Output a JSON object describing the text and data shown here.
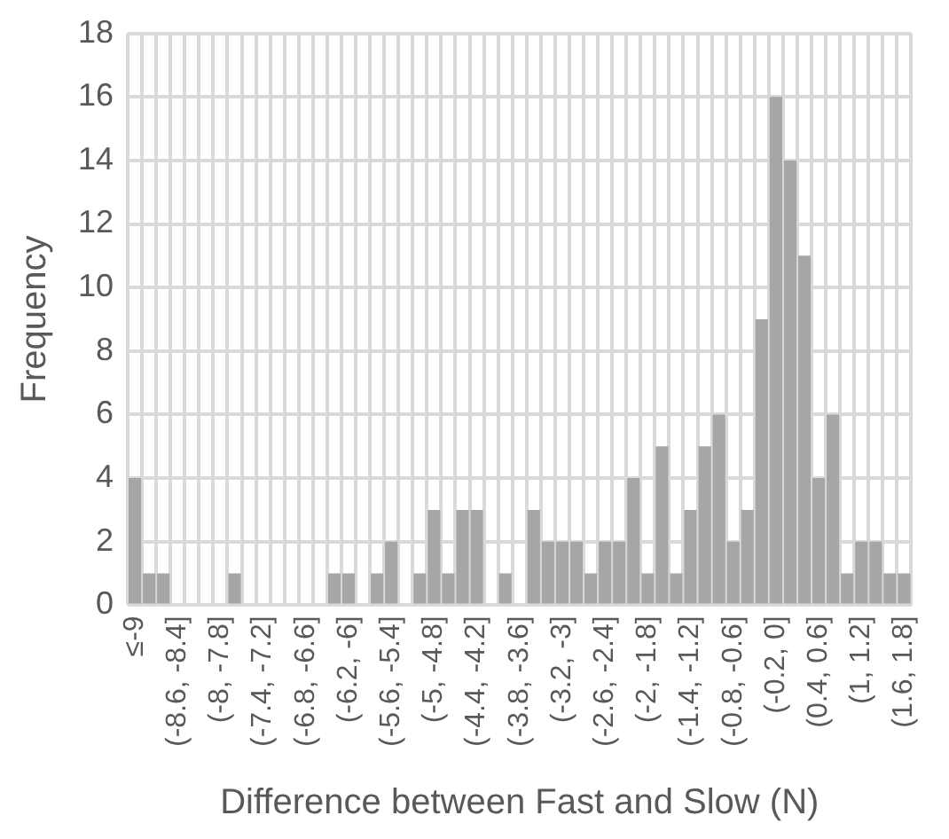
{
  "chart_data": {
    "type": "bar",
    "xlabel": "Difference between Fast and Slow (N)",
    "ylabel": "Frequency",
    "categories": [
      "≤-9",
      null,
      null,
      "(-8.6, -8.4]",
      null,
      null,
      "(-8, -7.8]",
      null,
      null,
      "(-7.4, -7.2]",
      null,
      null,
      "(-6.8, -6.6]",
      null,
      null,
      "(-6.2, -6]",
      null,
      null,
      "(-5.6, -5.4]",
      null,
      null,
      "(-5, -4.8]",
      null,
      null,
      "(-4.4, -4.2]",
      null,
      null,
      "(-3.8, -3.6]",
      null,
      null,
      "(-3.2, -3]",
      null,
      null,
      "(-2.6, -2.4]",
      null,
      null,
      "(-2, -1.8]",
      null,
      null,
      "(-1.4, -1.2]",
      null,
      null,
      "(-0.8, -0.6]",
      null,
      null,
      "(-0.2, 0]",
      null,
      null,
      "(0.4, 0.6]",
      null,
      null,
      "(1, 1.2]",
      null,
      null,
      "(1.6, 1.8]"
    ],
    "values": [
      4,
      1,
      1,
      0,
      0,
      0,
      0,
      1,
      0,
      0,
      0,
      0,
      0,
      0,
      1,
      1,
      0,
      1,
      2,
      0,
      1,
      3,
      1,
      3,
      3,
      0,
      1,
      0,
      3,
      2,
      2,
      2,
      1,
      2,
      2,
      4,
      1,
      5,
      1,
      3,
      5,
      6,
      2,
      3,
      9,
      16,
      14,
      11,
      4,
      6,
      1,
      2,
      2,
      1,
      1
    ],
    "color": "#a6a6a6",
    "ylim": [
      0,
      18
    ],
    "yticks": [
      0,
      2,
      4,
      6,
      8,
      10,
      12,
      14,
      16,
      18
    ],
    "grid": true
  }
}
